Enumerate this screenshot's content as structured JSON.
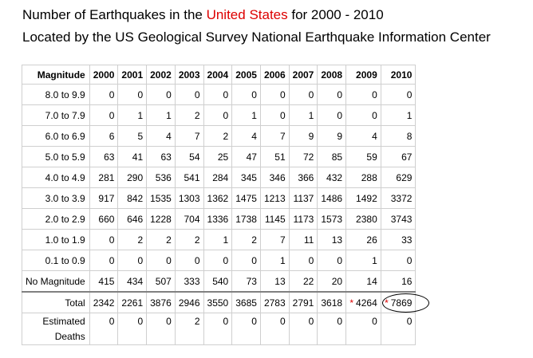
{
  "header": {
    "line1_prefix": "Number of Earthquakes in the ",
    "line1_highlight": "United States",
    "line1_suffix": " for 2000 - 2010",
    "line2": "Located by the US Geological Survey National Earthquake Information Center",
    "highlight_color": "#dd0000"
  },
  "table": {
    "corner": "Magnitude",
    "years": [
      "2000",
      "2001",
      "2002",
      "2003",
      "2004",
      "2005",
      "2006",
      "2007",
      "2008",
      "2009",
      "2010"
    ],
    "rows": [
      {
        "label": "8.0 to 9.9",
        "values": [
          "0",
          "0",
          "0",
          "0",
          "0",
          "0",
          "0",
          "0",
          "0",
          "0",
          "0"
        ]
      },
      {
        "label": "7.0 to 7.9",
        "values": [
          "0",
          "1",
          "1",
          "2",
          "0",
          "1",
          "0",
          "1",
          "0",
          "0",
          "1"
        ]
      },
      {
        "label": "6.0 to 6.9",
        "values": [
          "6",
          "5",
          "4",
          "7",
          "2",
          "4",
          "7",
          "9",
          "9",
          "4",
          "8"
        ]
      },
      {
        "label": "5.0 to 5.9",
        "values": [
          "63",
          "41",
          "63",
          "54",
          "25",
          "47",
          "51",
          "72",
          "85",
          "59",
          "67"
        ]
      },
      {
        "label": "4.0 to 4.9",
        "values": [
          "281",
          "290",
          "536",
          "541",
          "284",
          "345",
          "346",
          "366",
          "432",
          "288",
          "629"
        ]
      },
      {
        "label": "3.0 to 3.9",
        "values": [
          "917",
          "842",
          "1535",
          "1303",
          "1362",
          "1475",
          "1213",
          "1137",
          "1486",
          "1492",
          "3372"
        ]
      },
      {
        "label": "2.0 to 2.9",
        "values": [
          "660",
          "646",
          "1228",
          "704",
          "1336",
          "1738",
          "1145",
          "1173",
          "1573",
          "2380",
          "3743"
        ]
      },
      {
        "label": "1.0 to 1.9",
        "values": [
          "0",
          "2",
          "2",
          "2",
          "1",
          "2",
          "7",
          "11",
          "13",
          "26",
          "33"
        ]
      },
      {
        "label": "0.1 to 0.9",
        "values": [
          "0",
          "0",
          "0",
          "0",
          "0",
          "0",
          "1",
          "0",
          "0",
          "1",
          "0"
        ]
      },
      {
        "label": "No Magnitude",
        "values": [
          "415",
          "434",
          "507",
          "333",
          "540",
          "73",
          "13",
          "22",
          "20",
          "14",
          "16"
        ]
      }
    ],
    "total": {
      "label": "Total",
      "values": [
        "2342",
        "2261",
        "3876",
        "2946",
        "3550",
        "3685",
        "2783",
        "2791",
        "3618",
        "4264",
        "7869"
      ],
      "asterisk": "*"
    },
    "deaths": {
      "label_line1": "Estimated",
      "label_line2": "Deaths",
      "values": [
        "0",
        "0",
        "0",
        "2",
        "0",
        "0",
        "0",
        "0",
        "0",
        "0",
        "0"
      ]
    }
  }
}
